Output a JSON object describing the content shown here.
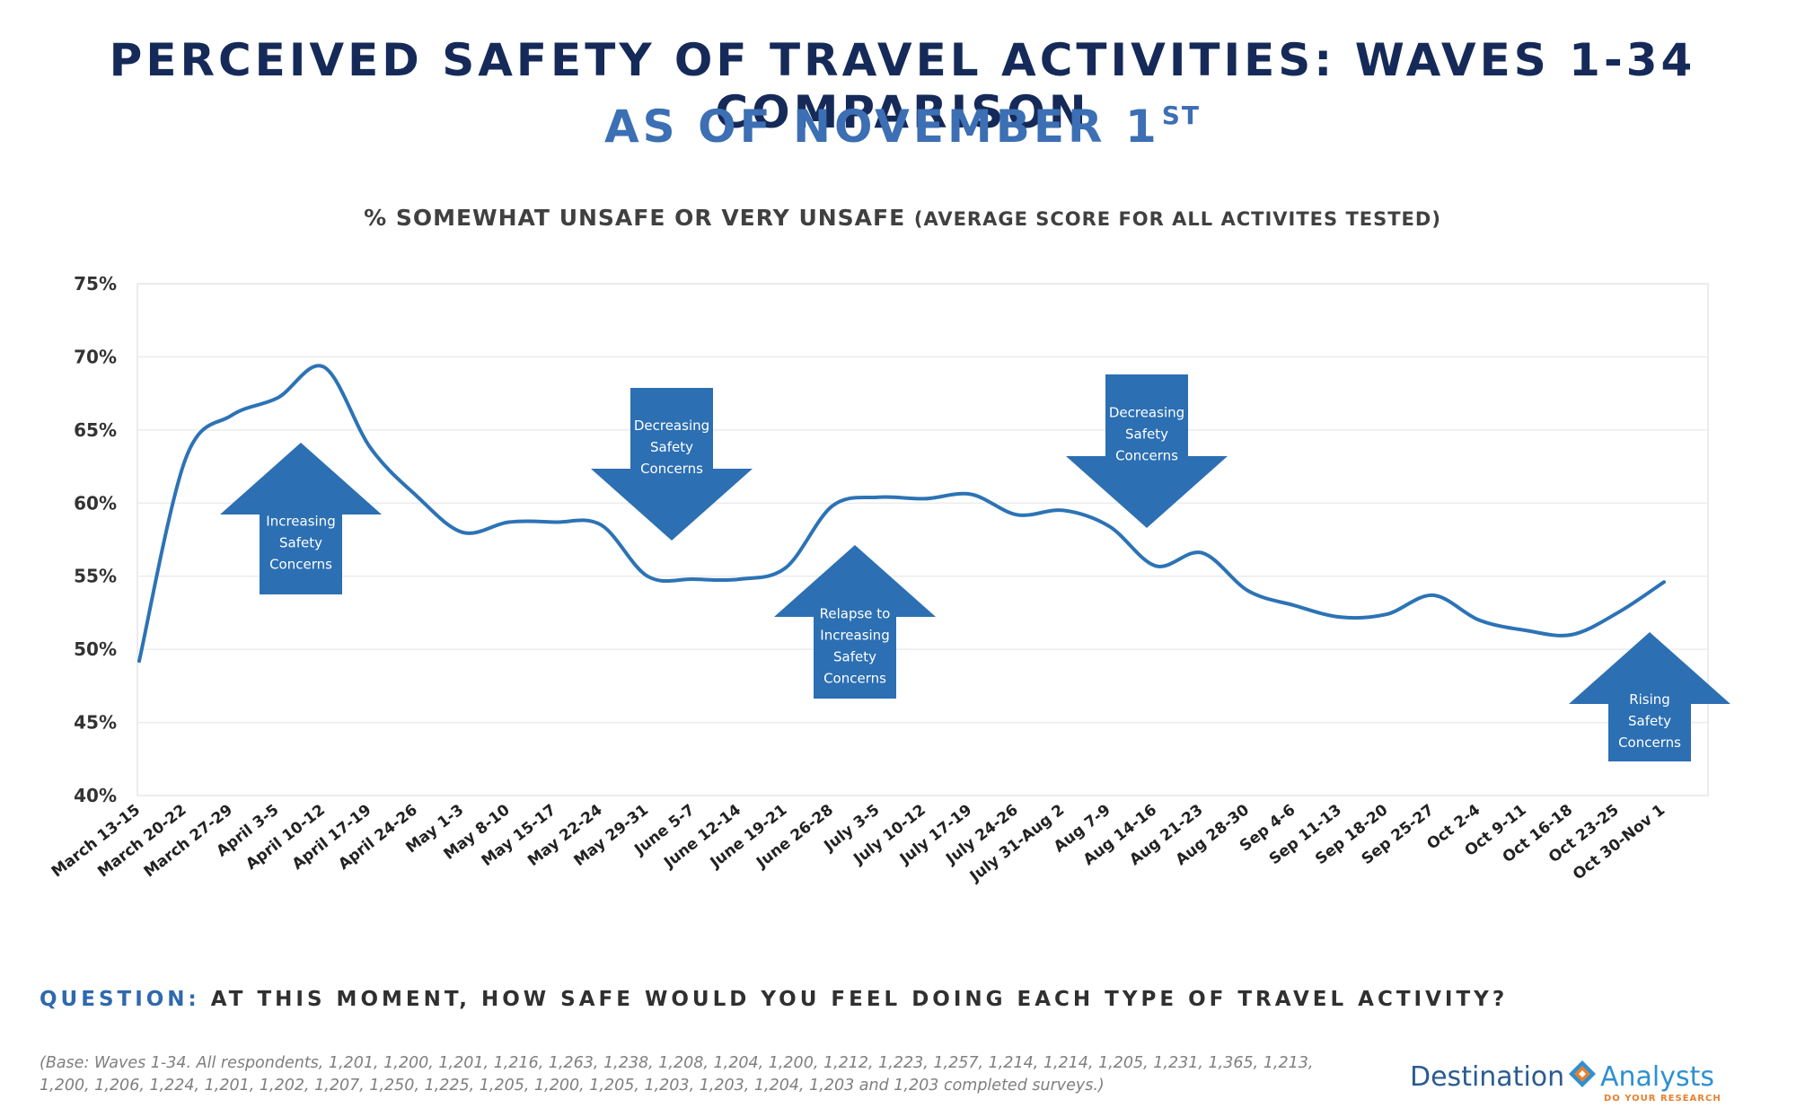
{
  "header": {
    "title": "PERCEIVED SAFETY OF TRAVEL ACTIVITIES: WAVES 1-34 COMPARISON",
    "subtitle_main": "AS OF NOVEMBER 1",
    "subtitle_sup": "ST"
  },
  "chart_heading": {
    "main": "% SOMEWHAT UNSAFE OR VERY UNSAFE",
    "paren": "(AVERAGE SCORE FOR ALL ACTIVITES TESTED)"
  },
  "chart_data": {
    "type": "line",
    "title": "% SOMEWHAT UNSAFE OR VERY UNSAFE (AVERAGE SCORE FOR ALL ACTIVITES TESTED)",
    "categories": [
      "March 13-15",
      "March 20-22",
      "March 27-29",
      "April 3-5",
      "April 10-12",
      "April 17-19",
      "April 24-26",
      "May 1-3",
      "May 8-10",
      "May 15-17",
      "May 22-24",
      "May 29-31",
      "June 5-7",
      "June 12-14",
      "June 19-21",
      "June 26-28",
      "July 3-5",
      "July 10-12",
      "July 17-19",
      "July 24-26",
      "July 31-Aug 2",
      "Aug 7-9",
      "Aug 14-16",
      "Aug 21-23",
      "Aug 28-30",
      "Sep 4-6",
      "Sep 11-13",
      "Sep 18-20",
      "Sep 25-27",
      "Oct 2-4",
      "Oct 9-11",
      "Oct 16-18",
      "Oct 23-25",
      "Oct 30-Nov 1"
    ],
    "values": [
      49.2,
      63.0,
      66.0,
      67.2,
      69.3,
      63.8,
      60.5,
      58.0,
      58.7,
      58.7,
      58.5,
      55.0,
      54.8,
      54.8,
      55.6,
      59.8,
      60.4,
      60.3,
      60.6,
      59.2,
      59.5,
      58.4,
      55.7,
      56.6,
      54.0,
      53.0,
      52.2,
      52.4,
      53.7,
      52.0,
      51.3,
      51.0,
      52.5,
      54.6
    ],
    "ylim": [
      40,
      75
    ],
    "yticks": [
      "40%",
      "45%",
      "50%",
      "55%",
      "60%",
      "65%",
      "70%",
      "75%"
    ],
    "grid": true,
    "line_color": "#2c73b5",
    "annotations": [
      {
        "direction": "up",
        "lines": [
          "Increasing",
          "Safety",
          "Concerns"
        ],
        "anchor_category": "April 3-5"
      },
      {
        "direction": "down",
        "lines": [
          "Decreasing",
          "Safety",
          "Concerns"
        ],
        "anchor_category": "June 5-7"
      },
      {
        "direction": "up",
        "lines": [
          "Relapse to",
          "Increasing",
          "Safety",
          "Concerns"
        ],
        "anchor_category": "July 3-5"
      },
      {
        "direction": "down",
        "lines": [
          "Decreasing",
          "Safety",
          "Concerns"
        ],
        "anchor_category": "Aug 14-16"
      },
      {
        "direction": "up",
        "lines": [
          "Rising",
          "Safety",
          "Concerns"
        ],
        "anchor_category": "Oct 30-Nov 1"
      }
    ],
    "annotation_color": "#2c6fb3"
  },
  "question": {
    "label": "QUESTION:",
    "text": "AT THIS MOMENT, HOW SAFE WOULD YOU FEEL DOING EACH TYPE OF TRAVEL ACTIVITY?"
  },
  "base_note": "(Base: Waves 1-34. All respondents, 1,201, 1,200, 1,201, 1,216, 1,263, 1,238, 1,208, 1,204, 1,200, 1,212, 1,223, 1,257, 1,214, 1,214, 1,205, 1,231, 1,365, 1,213, 1,200, 1,206, 1,224, 1,201, 1,202, 1,207, 1,250, 1,225, 1,205, 1,200, 1,205, 1,203, 1,203, 1,204, 1,203 and 1,203 completed surveys.)",
  "logo": {
    "word1": "Destination",
    "word2": "Analysts",
    "tagline": "DO YOUR RESEARCH",
    "diamond_icon": "diamond-logo-icon"
  }
}
